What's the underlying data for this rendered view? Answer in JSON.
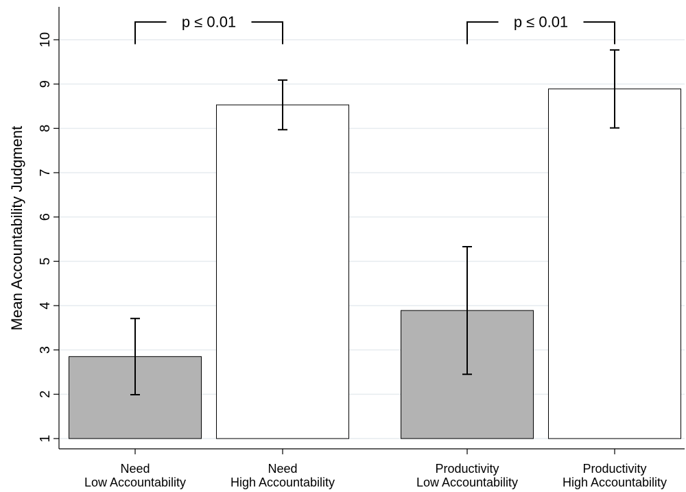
{
  "chart_data": {
    "type": "bar",
    "title": "",
    "xlabel": "",
    "ylabel": "Mean Accountability Judgment",
    "ylim": [
      1,
      10
    ],
    "yticks": [
      1,
      2,
      3,
      4,
      5,
      6,
      7,
      8,
      9,
      10
    ],
    "grid": true,
    "bars": [
      {
        "label_line1": "Need",
        "label_line2": "Low Accountability",
        "value": 2.85,
        "ci_low": 1.99,
        "ci_high": 3.71,
        "fill": "#b3b3b3"
      },
      {
        "label_line1": "Need",
        "label_line2": "High Accountability",
        "value": 8.53,
        "ci_low": 7.97,
        "ci_high": 9.09,
        "fill": "#ffffff"
      },
      {
        "label_line1": "Productivity",
        "label_line2": "Low Accountability",
        "value": 3.89,
        "ci_low": 2.45,
        "ci_high": 5.33,
        "fill": "#b3b3b3"
      },
      {
        "label_line1": "Productivity",
        "label_line2": "High Accountability",
        "value": 8.89,
        "ci_low": 8.01,
        "ci_high": 9.77,
        "fill": "#ffffff"
      }
    ],
    "annotations": [
      {
        "text": "p ≤ 0.01",
        "from_bar": 0,
        "to_bar": 1,
        "y": 10.4,
        "drop_to": 9.9
      },
      {
        "text": "p ≤ 0.01",
        "from_bar": 2,
        "to_bar": 3,
        "y": 10.4,
        "drop_to": 9.9
      }
    ],
    "colors": {
      "grid": "#e6ecef",
      "axis": "#000000",
      "bar_stroke": "#000000"
    }
  }
}
